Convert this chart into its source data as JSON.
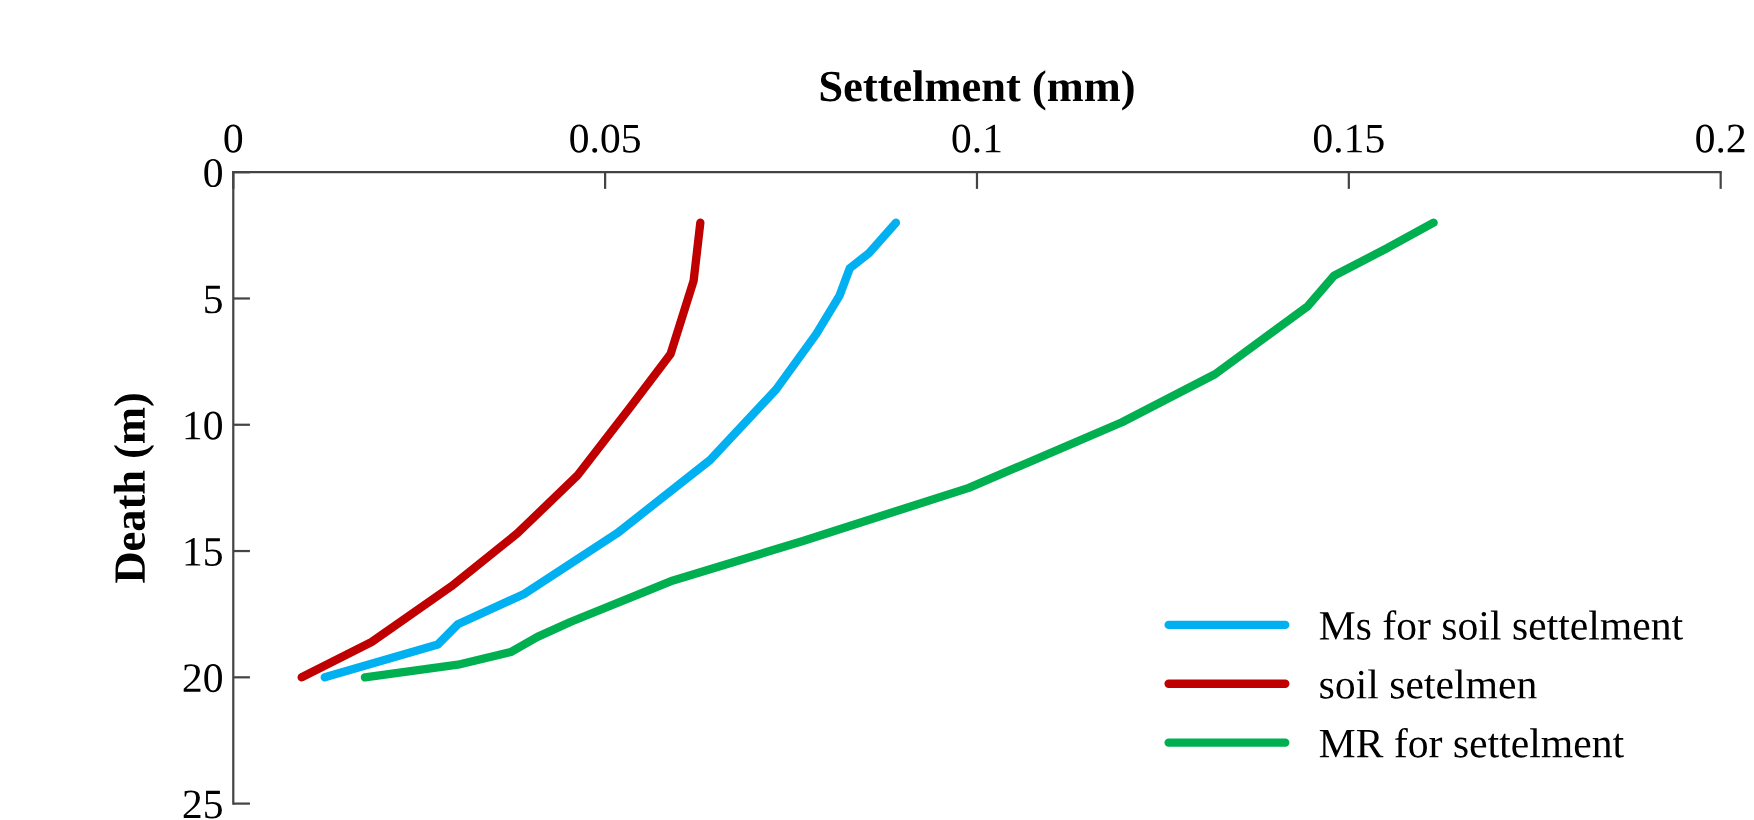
{
  "chart_data": {
    "type": "line",
    "xlabel": "Settelment (mm)",
    "ylabel": "Death (m)",
    "xlim": [
      0,
      0.2
    ],
    "xticks": [
      0,
      0.05,
      0.1,
      0.15,
      0.2
    ],
    "ylim": [
      25,
      0
    ],
    "yticks": [
      0,
      5,
      10,
      15,
      20,
      25
    ],
    "grid": false,
    "legend": "bottom right",
    "marker": "none",
    "line_style": "solid",
    "series": [
      {
        "name": "Ms for soil settelment",
        "color": "#00b0f0",
        "x": [
          0.0891,
          0.0855,
          0.0829,
          0.0815,
          0.0784,
          0.073,
          0.0641,
          0.0516,
          0.0391,
          0.0302,
          0.0275,
          0.0123
        ],
        "values": [
          2,
          3.2,
          3.8,
          4.9,
          6.4,
          8.6,
          11.4,
          14.3,
          16.7,
          17.9,
          18.7,
          20
        ]
      },
      {
        "name": "soil setelmen",
        "color": "#c00000",
        "x": [
          0.0628,
          0.0619,
          0.0588,
          0.0534,
          0.0463,
          0.0382,
          0.0293,
          0.0186,
          0.0092
        ],
        "values": [
          2,
          4.3,
          7.2,
          9.3,
          12,
          14.3,
          16.4,
          18.6,
          20
        ]
      },
      {
        "name": "MR for settelment",
        "color": "#00b050",
        "x": [
          0.1614,
          0.1552,
          0.148,
          0.1445,
          0.132,
          0.1195,
          0.0989,
          0.0766,
          0.0588,
          0.0454,
          0.0409,
          0.0373,
          0.0302,
          0.0177
        ],
        "values": [
          2,
          3.0,
          4.1,
          5.3,
          8.0,
          9.9,
          12.5,
          14.6,
          16.2,
          17.8,
          18.4,
          19.0,
          19.5,
          20
        ]
      }
    ]
  }
}
